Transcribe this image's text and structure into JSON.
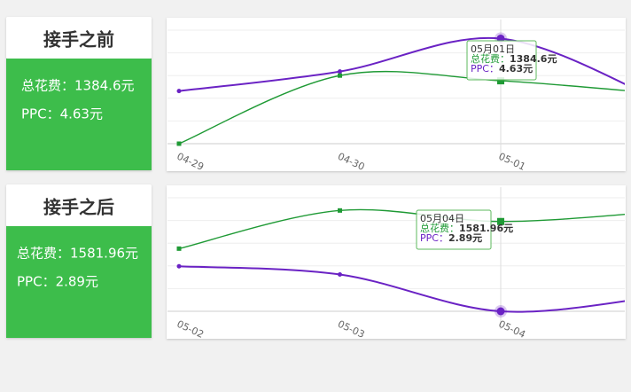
{
  "cards": [
    {
      "title": "接手之前",
      "lines": [
        "总花费：1384.6元",
        "PPC：4.63元"
      ]
    },
    {
      "title": "接手之后",
      "lines": [
        "总花费：1581.96元",
        "PPC：2.89元"
      ]
    }
  ],
  "chart_data": [
    {
      "type": "line",
      "categories": [
        "04-29",
        "04-30",
        "05-01",
        null
      ],
      "series": [
        {
          "name": "总花费",
          "color": "#1f9a35",
          "values": [
            0,
            1500,
            1384.6,
            1100
          ]
        },
        {
          "name": "PPC",
          "color": "#6a22c4",
          "axis": "y2",
          "values": [
            2.32,
            3.18,
            4.63,
            1.86
          ]
        }
      ],
      "ylim": [
        0,
        2500
      ],
      "yticks": [
        0,
        500,
        1000,
        1500,
        2000,
        2500
      ],
      "y2lim": [
        0,
        5
      ],
      "grid": true,
      "tooltip": {
        "date": "05月01日",
        "items": [
          {
            "label": "总花费：",
            "value": "1384.6元"
          },
          {
            "label": "PPC：",
            "value": "4.63元"
          }
        ]
      }
    },
    {
      "type": "line",
      "categories": [
        "05-02",
        "05-03",
        "05-04",
        null
      ],
      "series": [
        {
          "name": "总花费",
          "color": "#1f9a35",
          "values": [
            1104,
            1776,
            1581.96,
            1760
          ]
        },
        {
          "name": "PPC",
          "color": "#6a22c4",
          "axis": "y2",
          "values": [
            3.33,
            3.25,
            2.89,
            3.04
          ]
        }
      ],
      "ylim": [
        0,
        2000
      ],
      "yticks": [
        0,
        400,
        800,
        1200,
        1600,
        2000
      ],
      "y2lim": [
        2.89,
        4
      ],
      "grid": true,
      "tooltip": {
        "date": "05月04日",
        "items": [
          {
            "label": "总花费：",
            "value": "1581.96元"
          },
          {
            "label": "PPC：",
            "value": "2.89元"
          }
        ]
      }
    }
  ]
}
